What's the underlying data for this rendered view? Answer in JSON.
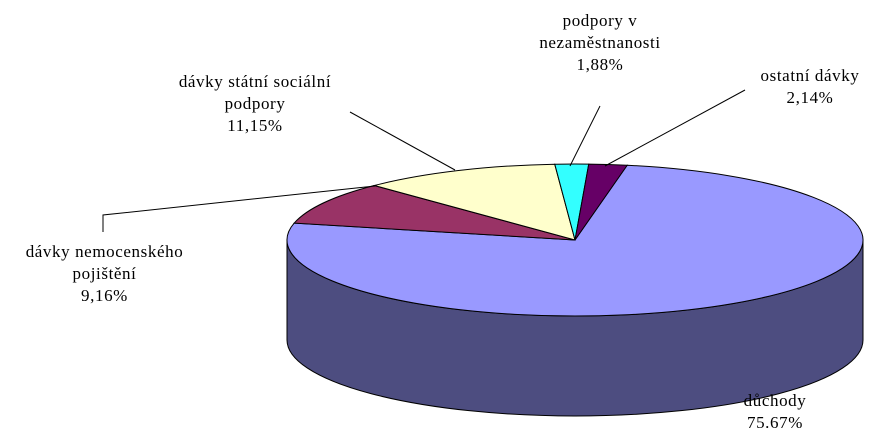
{
  "chart_data": {
    "type": "pie",
    "categories": [
      "důchody",
      "dávky nemocenského pojištění",
      "dávky státní sociální podpory",
      "podpory v nezaměstnanosti",
      "ostatní dávky"
    ],
    "values": [
      75.67,
      9.16,
      11.15,
      1.88,
      2.14
    ],
    "value_labels": [
      "75.67%",
      "9,16%",
      "11,15%",
      "1,88%",
      "2,14%"
    ],
    "colors": [
      "#9999ff",
      "#993366",
      "#ffffcc",
      "#33ffff",
      "#660066"
    ]
  }
}
